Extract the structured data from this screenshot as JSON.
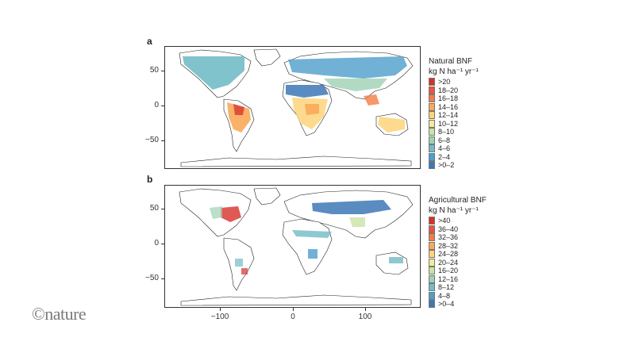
{
  "brand": "©nature",
  "x_ticks": [
    "−100",
    "0",
    "100"
  ],
  "panels": [
    {
      "letter": "a",
      "y_ticks": [
        "50",
        "0",
        "−50"
      ],
      "legend_title_line1": "Natural BNF",
      "legend_title_line2": "kg N ha⁻¹ yr⁻¹",
      "legend": [
        {
          "label": ">20",
          "color": "#d7302a"
        },
        {
          "label": "18–20",
          "color": "#e8543c"
        },
        {
          "label": "16–18",
          "color": "#f47d45"
        },
        {
          "label": "14–16",
          "color": "#f9a959"
        },
        {
          "label": "12–14",
          "color": "#fdd479"
        },
        {
          "label": "10–12",
          "color": "#f2eb9a"
        },
        {
          "label": "8–10",
          "color": "#c8e3a5"
        },
        {
          "label": "6–8",
          "color": "#9fd1b4"
        },
        {
          "label": "4–6",
          "color": "#72bcc6"
        },
        {
          "label": "2–4",
          "color": "#4f9ecc"
        },
        {
          "label": ">0–2",
          "color": "#3d78b7"
        }
      ]
    },
    {
      "letter": "b",
      "y_ticks": [
        "50",
        "0",
        "−50"
      ],
      "legend_title_line1": "Agricultural BNF",
      "legend_title_line2": "kg N ha⁻¹ yr⁻¹",
      "legend": [
        {
          "label": ">40",
          "color": "#d7302a"
        },
        {
          "label": "36–40",
          "color": "#e8543c"
        },
        {
          "label": "32–36",
          "color": "#f47d45"
        },
        {
          "label": "28–32",
          "color": "#f9a959"
        },
        {
          "label": "24–28",
          "color": "#fdd479"
        },
        {
          "label": "20–24",
          "color": "#f2eb9a"
        },
        {
          "label": "16–20",
          "color": "#c8e3a5"
        },
        {
          "label": "12–16",
          "color": "#9fd1b4"
        },
        {
          "label": "8–12",
          "color": "#72bcc6"
        },
        {
          "label": "4–8",
          "color": "#4f9ecc"
        },
        {
          "label": ">0–4",
          "color": "#3d78b7"
        }
      ]
    }
  ]
}
